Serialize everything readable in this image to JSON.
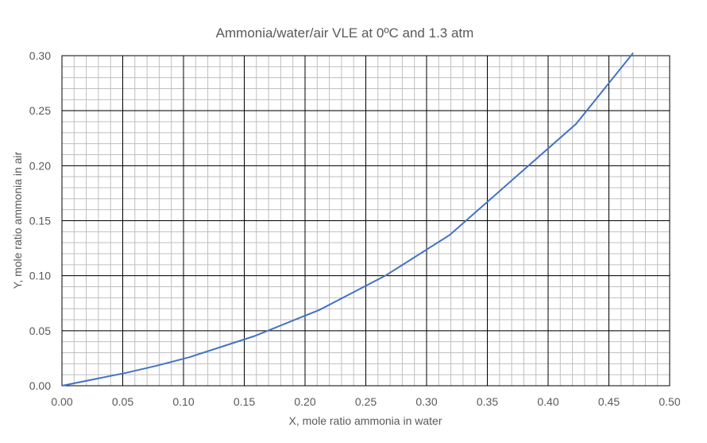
{
  "chart_data": {
    "type": "line",
    "title": "Ammonia/water/air VLE at 0ºC and 1.3 atm",
    "xlabel": "X, mole ratio ammonia in water",
    "ylabel": "Y, mole ratio ammonia in air",
    "xlim": [
      0,
      0.5
    ],
    "ylim": [
      0,
      0.3
    ],
    "x_major_step": 0.05,
    "y_major_step": 0.05,
    "x_minor_step": 0.01,
    "y_minor_step": 0.01,
    "x_tick_labels": [
      "0.00",
      "0.05",
      "0.10",
      "0.15",
      "0.20",
      "0.25",
      "0.30",
      "0.35",
      "0.40",
      "0.45",
      "0.50"
    ],
    "y_tick_labels": [
      "0.00",
      "0.05",
      "0.10",
      "0.15",
      "0.20",
      "0.25",
      "0.30"
    ],
    "grid": true,
    "legend": "none",
    "series": [
      {
        "color": "#4472c4",
        "x": [
          0,
          0.053,
          0.078,
          0.105,
          0.158,
          0.212,
          0.266,
          0.319,
          0.423,
          0.47
        ],
        "y": [
          0,
          0.0118,
          0.0182,
          0.026,
          0.045,
          0.069,
          0.1,
          0.137,
          0.238,
          0.3025
        ]
      }
    ]
  }
}
